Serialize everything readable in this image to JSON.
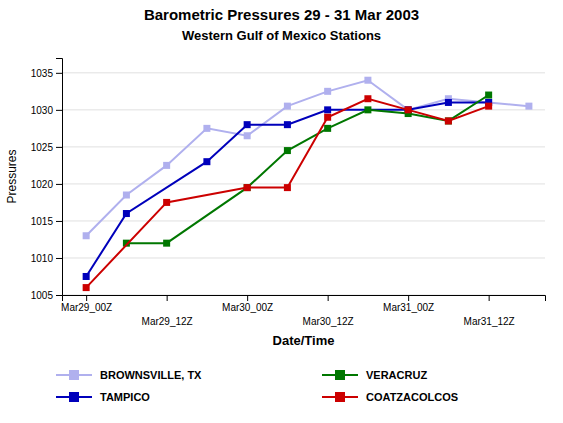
{
  "chart_data": {
    "type": "line",
    "title": "Barometric Pressures 29 - 31 Mar 2003",
    "subtitle": "Western Gulf of Mexico Stations",
    "x_label": "Date/Time",
    "y_label": "Pressures",
    "xlim": [
      -0.3,
      5.7
    ],
    "xticks": [
      {
        "value": 0,
        "label": "Mar29_00Z"
      },
      {
        "value": 1,
        "label": "Mar29_12Z"
      },
      {
        "value": 2,
        "label": "Mar30_00Z"
      },
      {
        "value": 3,
        "label": "Mar30_12Z"
      },
      {
        "value": 4,
        "label": "Mar31_00Z"
      },
      {
        "value": 5,
        "label": "Mar31_12Z"
      }
    ],
    "ylim": [
      1005,
      1037
    ],
    "yticks": [
      1005,
      1010,
      1015,
      1020,
      1025,
      1030,
      1035
    ],
    "grid": true,
    "legend": "bottom",
    "marker": "square",
    "series": [
      {
        "name": "BROWNSVILLE, TX",
        "color": "#b0b0ee",
        "x": [
          0,
          0.5,
          1,
          1.5,
          2,
          2.5,
          3,
          3.5,
          4,
          4.5,
          5,
          5.5
        ],
        "values": [
          1013,
          1018.5,
          1022.5,
          1027.5,
          1026.5,
          1030.5,
          1032.5,
          1034,
          1030,
          1031.5,
          1031,
          1030.5
        ]
      },
      {
        "name": "TAMPICO",
        "color": "#0000bb",
        "x": [
          0,
          0.5,
          1.5,
          2,
          2.5,
          3,
          4,
          4.5,
          5
        ],
        "values": [
          1007.5,
          1016,
          1023,
          1028,
          1028,
          1030,
          1030,
          1031,
          1031
        ]
      },
      {
        "name": "VERACRUZ",
        "color": "#007700",
        "x": [
          0.5,
          1,
          2,
          2.5,
          3,
          3.5,
          4,
          4.5,
          5
        ],
        "values": [
          1012,
          1012,
          1019.5,
          1024.5,
          1027.5,
          1030,
          1029.5,
          1028.5,
          1032
        ]
      },
      {
        "name": "COATZACOLCOS",
        "color": "#cc0000",
        "x": [
          0,
          1,
          2,
          2.5,
          3,
          3.5,
          4,
          4.5,
          5
        ],
        "values": [
          1006,
          1017.5,
          1019.5,
          1019.5,
          1029,
          1031.5,
          1030,
          1028.5,
          1030.5
        ]
      }
    ]
  }
}
